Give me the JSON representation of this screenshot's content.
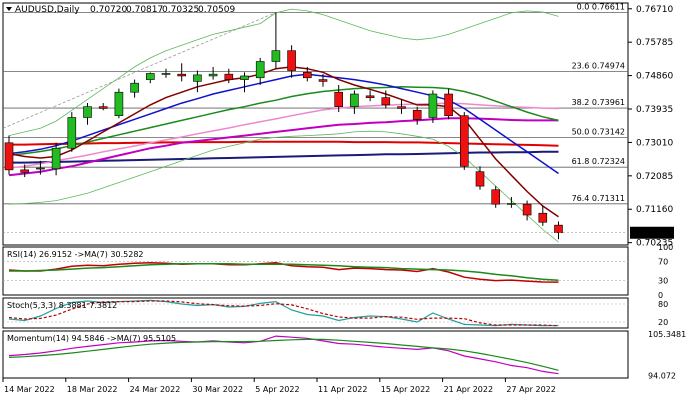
{
  "chart_data": [
    {
      "type": "candlestick",
      "panel": "price",
      "symbol": "AUDUSD",
      "timeframe": "Daily",
      "header": {
        "title": "AUDUSD,Daily",
        "open": "0.70720",
        "high": "0.70817",
        "low": "0.70325",
        "close": "0.70509"
      },
      "y_ticks": [
        "0.76710",
        "0.75785",
        "0.74860",
        "0.73935",
        "0.73010",
        "0.72085",
        "0.71160",
        "0.70235"
      ],
      "ylim": [
        0.7017,
        0.7687
      ],
      "current_price": "0.70509",
      "fibonacci_levels": [
        {
          "label": "0.0 0.76611",
          "value": 0.76611
        },
        {
          "label": "23.6 0.74974",
          "value": 0.74974
        },
        {
          "label": "38.2 0.73961",
          "value": 0.73961
        },
        {
          "label": "50.0 0.73142",
          "value": 0.73142
        },
        {
          "label": "61.8 0.72324",
          "value": 0.72324
        },
        {
          "label": "76.4 0.71311",
          "value": 0.71311
        }
      ],
      "x_ticks": [
        "14 Mar 2022",
        "18 Mar 2022",
        "24 Mar 2022",
        "30 Mar 2022",
        "5 Apr 2022",
        "11 Apr 2022",
        "15 Apr 2022",
        "21 Apr 2022",
        "27 Apr 2022"
      ],
      "candles": [
        {
          "o": 0.73,
          "h": 0.732,
          "l": 0.7212,
          "c": 0.7225
        },
        {
          "o": 0.7225,
          "h": 0.724,
          "l": 0.7205,
          "c": 0.7218
        },
        {
          "o": 0.723,
          "h": 0.725,
          "l": 0.7212,
          "c": 0.723
        },
        {
          "o": 0.7228,
          "h": 0.73,
          "l": 0.721,
          "c": 0.7285
        },
        {
          "o": 0.7285,
          "h": 0.7385,
          "l": 0.7275,
          "c": 0.737
        },
        {
          "o": 0.737,
          "h": 0.741,
          "l": 0.735,
          "c": 0.74
        },
        {
          "o": 0.74,
          "h": 0.741,
          "l": 0.739,
          "c": 0.7395
        },
        {
          "o": 0.7375,
          "h": 0.745,
          "l": 0.7368,
          "c": 0.744
        },
        {
          "o": 0.744,
          "h": 0.7475,
          "l": 0.7425,
          "c": 0.7465
        },
        {
          "o": 0.7475,
          "h": 0.7495,
          "l": 0.7465,
          "c": 0.7492
        },
        {
          "o": 0.749,
          "h": 0.7505,
          "l": 0.748,
          "c": 0.7492
        },
        {
          "o": 0.749,
          "h": 0.752,
          "l": 0.747,
          "c": 0.7485
        },
        {
          "o": 0.747,
          "h": 0.75,
          "l": 0.744,
          "c": 0.7488
        },
        {
          "o": 0.7485,
          "h": 0.751,
          "l": 0.7475,
          "c": 0.749
        },
        {
          "o": 0.749,
          "h": 0.7505,
          "l": 0.7465,
          "c": 0.7475
        },
        {
          "o": 0.7475,
          "h": 0.7495,
          "l": 0.744,
          "c": 0.7485
        },
        {
          "o": 0.748,
          "h": 0.7535,
          "l": 0.746,
          "c": 0.7525
        },
        {
          "o": 0.7525,
          "h": 0.7661,
          "l": 0.7505,
          "c": 0.7555
        },
        {
          "o": 0.7555,
          "h": 0.757,
          "l": 0.748,
          "c": 0.75
        },
        {
          "o": 0.7495,
          "h": 0.751,
          "l": 0.747,
          "c": 0.748
        },
        {
          "o": 0.7475,
          "h": 0.749,
          "l": 0.7455,
          "c": 0.747
        },
        {
          "o": 0.744,
          "h": 0.746,
          "l": 0.7385,
          "c": 0.74
        },
        {
          "o": 0.74,
          "h": 0.7445,
          "l": 0.738,
          "c": 0.7435
        },
        {
          "o": 0.743,
          "h": 0.7445,
          "l": 0.7415,
          "c": 0.7425
        },
        {
          "o": 0.7425,
          "h": 0.7445,
          "l": 0.7395,
          "c": 0.7405
        },
        {
          "o": 0.74,
          "h": 0.742,
          "l": 0.738,
          "c": 0.7395
        },
        {
          "o": 0.739,
          "h": 0.74,
          "l": 0.735,
          "c": 0.7365
        },
        {
          "o": 0.737,
          "h": 0.7445,
          "l": 0.7355,
          "c": 0.7435
        },
        {
          "o": 0.7435,
          "h": 0.745,
          "l": 0.7365,
          "c": 0.7375
        },
        {
          "o": 0.7375,
          "h": 0.7385,
          "l": 0.7225,
          "c": 0.7235
        },
        {
          "o": 0.722,
          "h": 0.7235,
          "l": 0.717,
          "c": 0.718
        },
        {
          "o": 0.717,
          "h": 0.718,
          "l": 0.712,
          "c": 0.713
        },
        {
          "o": 0.713,
          "h": 0.715,
          "l": 0.712,
          "c": 0.7132
        },
        {
          "o": 0.713,
          "h": 0.714,
          "l": 0.7085,
          "c": 0.71
        },
        {
          "o": 0.7105,
          "h": 0.7125,
          "l": 0.707,
          "c": 0.708
        },
        {
          "o": 0.7072,
          "h": 0.7082,
          "l": 0.7033,
          "c": 0.7051
        }
      ],
      "series": [
        {
          "name": "slow-ma-navy",
          "color": "#1a1a7a",
          "values": [
            0.7245,
            0.7245,
            0.7246,
            0.7247,
            0.7248,
            0.7249,
            0.725,
            0.7251,
            0.7252,
            0.7253,
            0.7254,
            0.7255,
            0.7256,
            0.7257,
            0.7258,
            0.7259,
            0.726,
            0.7261,
            0.7262,
            0.7263,
            0.7264,
            0.7265,
            0.7266,
            0.7267,
            0.7268,
            0.7268,
            0.7269,
            0.727,
            0.7271,
            0.7272,
            0.7273,
            0.7273,
            0.7274,
            0.7274,
            0.7275,
            0.7275
          ]
        },
        {
          "name": "slow-ma-red",
          "color": "#e00000",
          "values": [
            0.7295,
            0.7295,
            0.7296,
            0.7297,
            0.7297,
            0.7298,
            0.7299,
            0.7299,
            0.73,
            0.73,
            0.7301,
            0.7301,
            0.7302,
            0.7302,
            0.7302,
            0.7303,
            0.7303,
            0.7303,
            0.7303,
            0.7303,
            0.7303,
            0.7303,
            0.7302,
            0.7302,
            0.7302,
            0.7301,
            0.7301,
            0.73,
            0.7299,
            0.7298,
            0.7297,
            0.7296,
            0.7295,
            0.7294,
            0.7293,
            0.7292
          ]
        },
        {
          "name": "ma-magenta",
          "color": "#c000c0",
          "values": [
            0.721,
            0.7215,
            0.722,
            0.7228,
            0.7235,
            0.7245,
            0.7255,
            0.7265,
            0.7275,
            0.7285,
            0.7292,
            0.73,
            0.7305,
            0.731,
            0.7315,
            0.732,
            0.7325,
            0.733,
            0.7335,
            0.734,
            0.7345,
            0.735,
            0.7352,
            0.7355,
            0.7357,
            0.736,
            0.7362,
            0.7365,
            0.7368,
            0.7368,
            0.7367,
            0.7365,
            0.7363,
            0.7362,
            0.7362,
            0.7362
          ]
        },
        {
          "name": "ma-pink",
          "color": "#ee88cc",
          "values": [
            0.723,
            0.7235,
            0.7242,
            0.725,
            0.7258,
            0.7266,
            0.7275,
            0.7283,
            0.7291,
            0.73,
            0.7308,
            0.7316,
            0.7325,
            0.7333,
            0.7341,
            0.735,
            0.7358,
            0.7366,
            0.7375,
            0.7383,
            0.7391,
            0.7396,
            0.74,
            0.7402,
            0.7404,
            0.7406,
            0.7407,
            0.7408,
            0.741,
            0.7408,
            0.7405,
            0.7402,
            0.74,
            0.7398,
            0.7396,
            0.7395
          ]
        },
        {
          "name": "ma-green",
          "color": "#1a8a1a",
          "values": [
            0.7265,
            0.727,
            0.7276,
            0.7283,
            0.7292,
            0.7302,
            0.7312,
            0.7322,
            0.7332,
            0.7342,
            0.7352,
            0.7362,
            0.7372,
            0.7382,
            0.7392,
            0.74,
            0.741,
            0.7418,
            0.7428,
            0.7436,
            0.7442,
            0.7446,
            0.745,
            0.7452,
            0.7453,
            0.7455,
            0.7454,
            0.7453,
            0.745,
            0.7442,
            0.743,
            0.7415,
            0.74,
            0.7385,
            0.7372,
            0.7362
          ]
        },
        {
          "name": "ma-blue",
          "color": "#1010d0",
          "values": [
            0.727,
            0.7275,
            0.7282,
            0.7292,
            0.7305,
            0.732,
            0.7335,
            0.735,
            0.7365,
            0.738,
            0.7395,
            0.741,
            0.7422,
            0.7435,
            0.7445,
            0.7455,
            0.7465,
            0.7475,
            0.7485,
            0.749,
            0.7485,
            0.748,
            0.7475,
            0.7468,
            0.746,
            0.745,
            0.744,
            0.743,
            0.7418,
            0.7395,
            0.7365,
            0.7335,
            0.7305,
            0.7275,
            0.7245,
            0.7215
          ]
        },
        {
          "name": "ma-maroon",
          "color": "#800000",
          "values": [
            0.727,
            0.7262,
            0.7258,
            0.7262,
            0.728,
            0.7305,
            0.733,
            0.7355,
            0.738,
            0.7405,
            0.7425,
            0.744,
            0.7455,
            0.7465,
            0.7475,
            0.748,
            0.749,
            0.7505,
            0.751,
            0.7505,
            0.7495,
            0.7475,
            0.746,
            0.7448,
            0.7435,
            0.742,
            0.7405,
            0.7405,
            0.74,
            0.7365,
            0.731,
            0.7255,
            0.721,
            0.7165,
            0.7125,
            0.7095
          ]
        },
        {
          "name": "bb-upper",
          "color": "#5cb85c",
          "values": [
            0.732,
            0.733,
            0.734,
            0.736,
            0.739,
            0.742,
            0.745,
            0.748,
            0.751,
            0.7535,
            0.7555,
            0.757,
            0.7585,
            0.76,
            0.761,
            0.762,
            0.763,
            0.766,
            0.767,
            0.7665,
            0.7655,
            0.764,
            0.7625,
            0.761,
            0.76,
            0.759,
            0.7585,
            0.759,
            0.76,
            0.7615,
            0.763,
            0.7645,
            0.766,
            0.7665,
            0.7662,
            0.765
          ]
        },
        {
          "name": "bb-lower",
          "color": "#5cb85c",
          "values": [
            0.713,
            0.7132,
            0.7135,
            0.714,
            0.715,
            0.716,
            0.7175,
            0.719,
            0.7205,
            0.722,
            0.7235,
            0.725,
            0.7265,
            0.728,
            0.729,
            0.73,
            0.731,
            0.7315,
            0.7318,
            0.732,
            0.7322,
            0.7325,
            0.733,
            0.7332,
            0.733,
            0.7325,
            0.7318,
            0.731,
            0.729,
            0.726,
            0.722,
            0.718,
            0.714,
            0.71,
            0.706,
            0.7025
          ]
        }
      ]
    },
    {
      "type": "line",
      "panel": "rsi",
      "label": "RSI(14) 26.9152 ->MA(7) 30.5282",
      "y_ticks": [
        "100",
        "70",
        "30",
        "0"
      ],
      "ylim": [
        0,
        100
      ],
      "levels": [
        70,
        30
      ],
      "series": [
        {
          "name": "RSI(14)",
          "color": "#c00000",
          "values": [
            52,
            50,
            50,
            54,
            60,
            62,
            61,
            64,
            66,
            67,
            66,
            64,
            65,
            65,
            63,
            63,
            65,
            67,
            61,
            59,
            58,
            53,
            56,
            55,
            53,
            52,
            49,
            55,
            48,
            37,
            33,
            30,
            31,
            29,
            27,
            26.9152
          ]
        },
        {
          "name": "MA(7)",
          "color": "#1a8a1a",
          "values": [
            50,
            50,
            51,
            52,
            54,
            56,
            57,
            59,
            61,
            63,
            64,
            65,
            65,
            65,
            65,
            64,
            64,
            64,
            64,
            63,
            62,
            61,
            59,
            58,
            57,
            55,
            54,
            53,
            52,
            50,
            47,
            43,
            40,
            36,
            33,
            30.5282
          ]
        }
      ]
    },
    {
      "type": "line",
      "panel": "stochastic",
      "label": "Stoch(5,3,3) 8.3881 7.3812",
      "y_ticks": [
        "80",
        "20"
      ],
      "ylim": [
        0,
        100
      ],
      "levels": [
        80,
        20
      ],
      "series": [
        {
          "name": "%K",
          "color": "#20a0a0",
          "values": [
            30,
            25,
            40,
            65,
            85,
            90,
            85,
            88,
            90,
            92,
            88,
            80,
            75,
            78,
            70,
            72,
            82,
            88,
            60,
            45,
            40,
            25,
            35,
            40,
            38,
            30,
            20,
            50,
            30,
            12,
            10,
            8,
            12,
            10,
            8,
            8.3881
          ]
        },
        {
          "name": "%D",
          "color": "#c00000",
          "values": [
            35,
            30,
            32,
            43,
            63,
            80,
            87,
            88,
            88,
            90,
            90,
            87,
            81,
            78,
            74,
            73,
            75,
            81,
            77,
            64,
            48,
            37,
            33,
            33,
            38,
            36,
            29,
            33,
            33,
            31,
            17,
            10,
            10,
            10,
            10,
            7.3812
          ]
        }
      ]
    },
    {
      "type": "line",
      "panel": "momentum",
      "label": "Momentum(14) 94.5846 ->MA(7) 95.5105",
      "y_ticks": [
        "105.3481",
        "94.072"
      ],
      "ylim": [
        93.4,
        106.2
      ],
      "series": [
        {
          "name": "Momentum(14)",
          "color": "#c000c0",
          "values": [
            99.5,
            99.8,
            100.2,
            100.8,
            101.5,
            102.0,
            102.5,
            103.0,
            103.2,
            103.5,
            103.6,
            103.4,
            103.2,
            103.5,
            103.2,
            103.0,
            103.4,
            104.8,
            104.5,
            104.2,
            103.5,
            102.8,
            102.6,
            102.2,
            101.8,
            101.5,
            101.2,
            101.6,
            100.8,
            99.4,
            98.6,
            97.8,
            96.8,
            96.2,
            95.2,
            94.5846
          ]
        },
        {
          "name": "MA(7)",
          "color": "#1a8a1a",
          "values": [
            99.0,
            99.2,
            99.5,
            99.8,
            100.2,
            100.7,
            101.2,
            101.7,
            102.2,
            102.6,
            102.9,
            103.1,
            103.2,
            103.3,
            103.3,
            103.3,
            103.4,
            103.6,
            103.8,
            103.9,
            103.9,
            103.7,
            103.4,
            103.1,
            102.8,
            102.4,
            102.0,
            101.6,
            101.3,
            100.8,
            100.1,
            99.3,
            98.5,
            97.6,
            96.6,
            95.5105
          ]
        }
      ]
    }
  ]
}
